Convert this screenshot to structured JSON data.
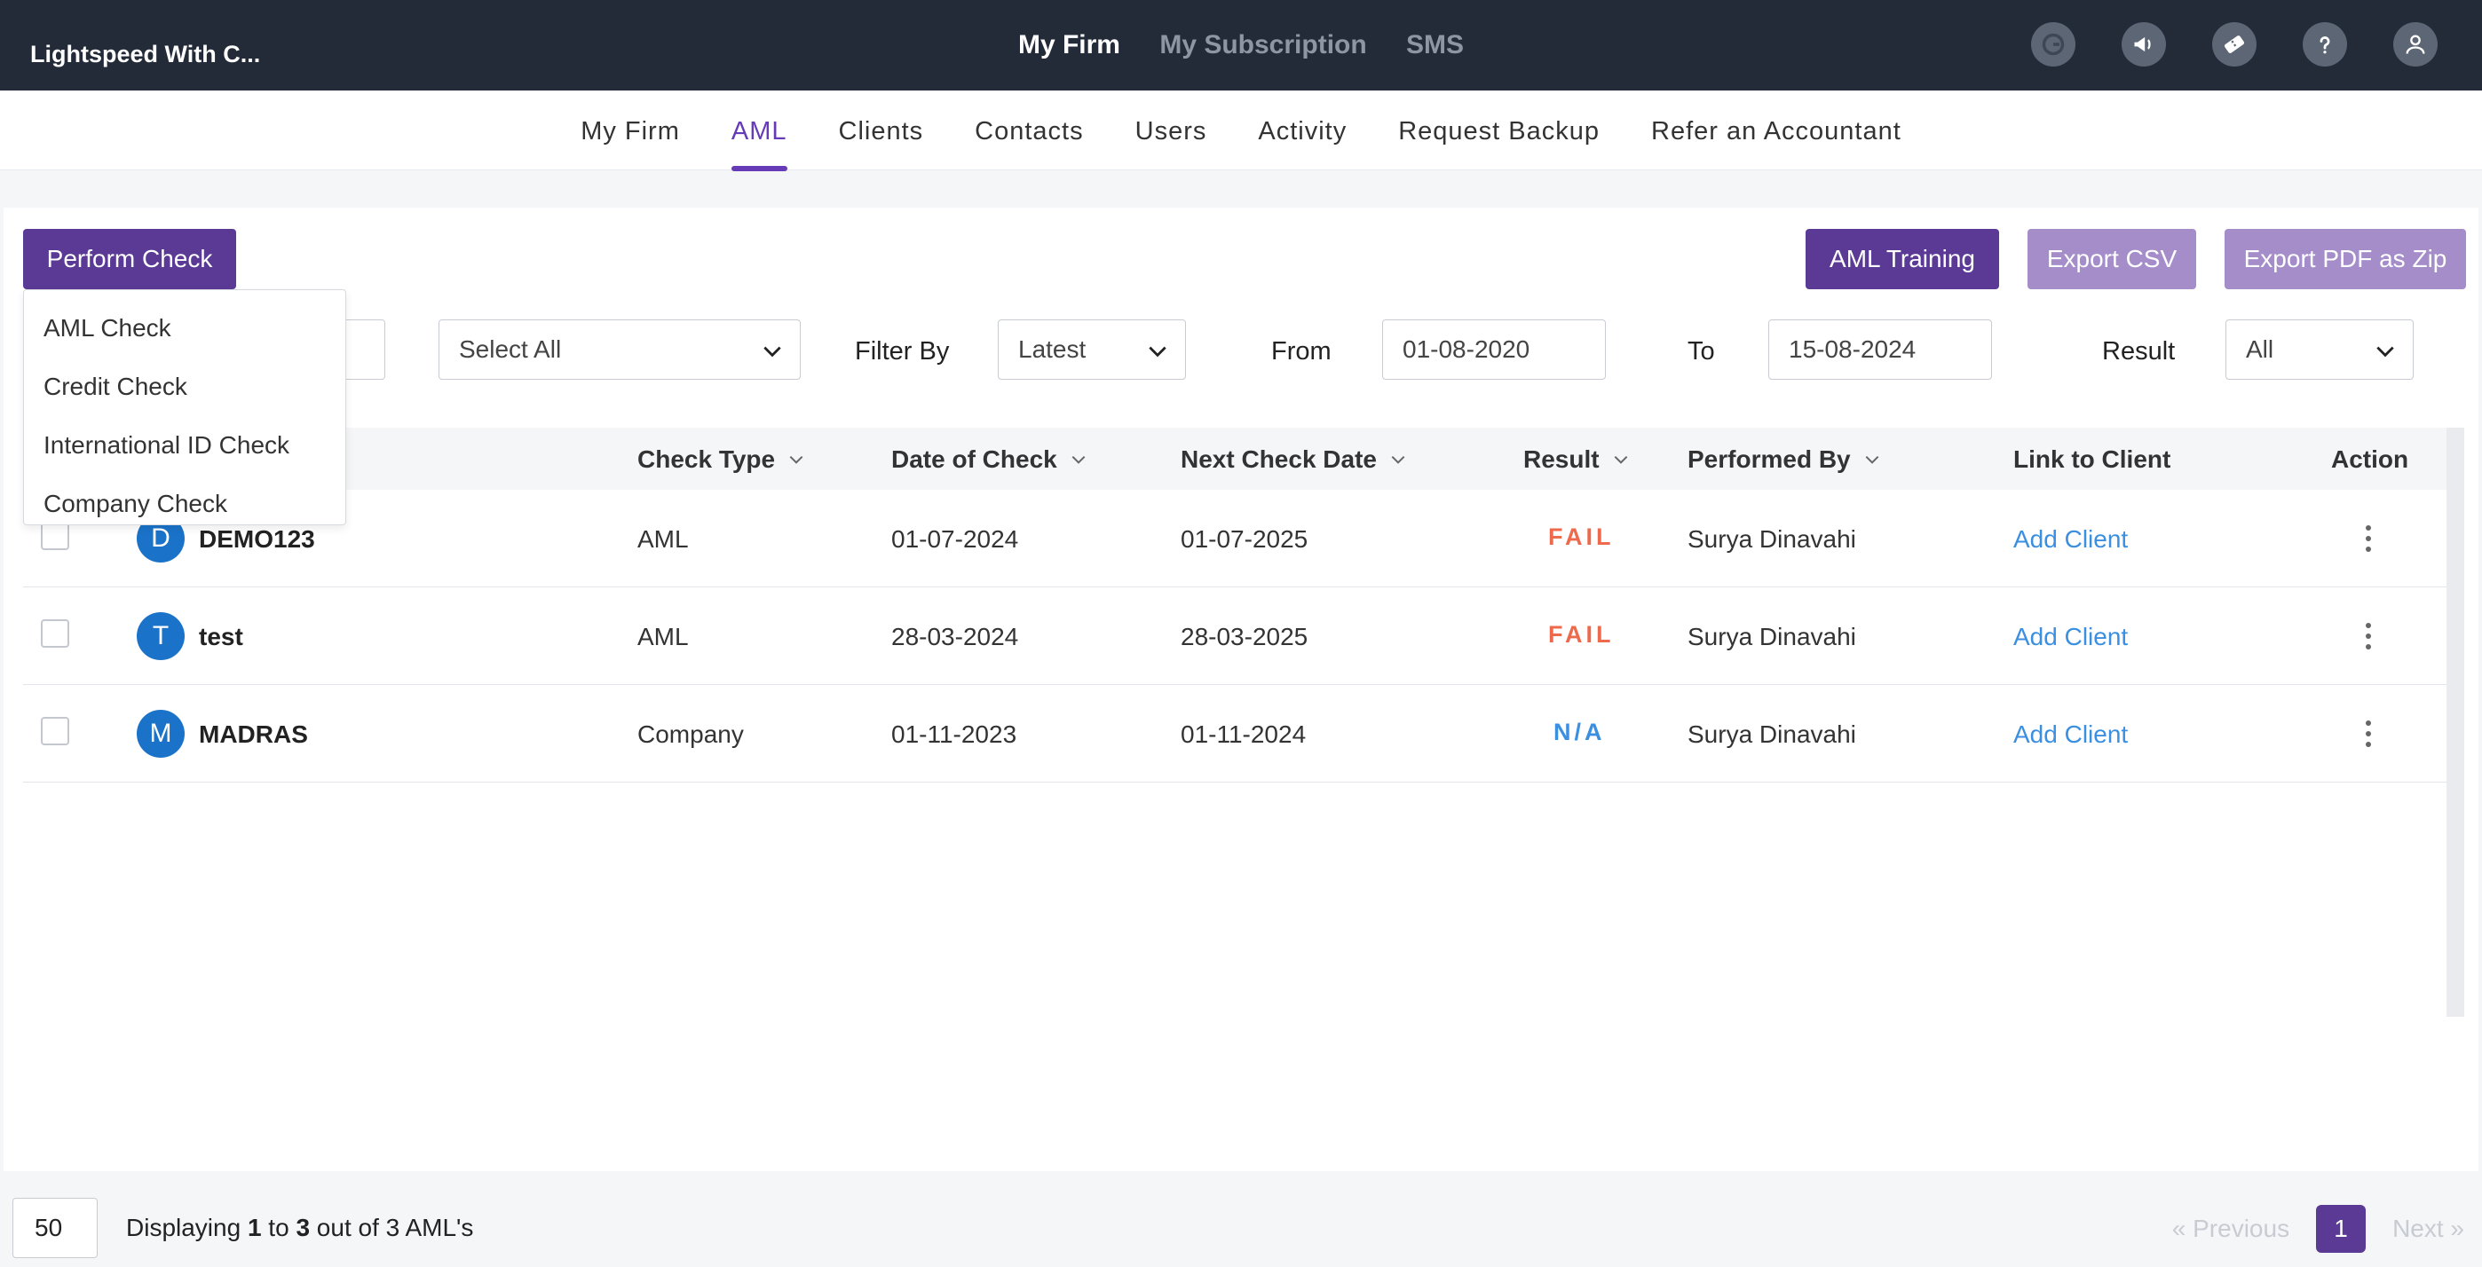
{
  "app": {
    "brand": "Lightspeed With C..."
  },
  "topnav": {
    "items": [
      "My Firm",
      "My Subscription",
      "SMS"
    ],
    "active": "My Firm"
  },
  "topicons": [
    "g-circle-icon",
    "megaphone-icon",
    "ticket-icon",
    "help-icon",
    "user-icon"
  ],
  "subnav": {
    "items": [
      "My Firm",
      "AML",
      "Clients",
      "Contacts",
      "Users",
      "Activity",
      "Request Backup",
      "Refer an Accountant"
    ],
    "active": "AML"
  },
  "toolbar": {
    "perform_check": "Perform Check",
    "aml_training": "AML Training",
    "export_csv": "Export CSV",
    "export_pdf": "Export PDF as Zip"
  },
  "perform_menu": [
    "AML Check",
    "Credit Check",
    "International ID Check",
    "Company Check"
  ],
  "filters": {
    "select_all": "Select All",
    "filter_by_label": "Filter By",
    "filter_by_value": "Latest",
    "from_label": "From",
    "from_value": "01-08-2020",
    "to_label": "To",
    "to_value": "15-08-2024",
    "result_label": "Result",
    "result_value": "All"
  },
  "table": {
    "headers": {
      "check_type": "Check Type",
      "date_of_check": "Date of Check",
      "next_check_date": "Next Check Date",
      "result": "Result",
      "performed_by": "Performed By",
      "link_to_client": "Link to Client",
      "action": "Action"
    },
    "rows": [
      {
        "initial": "D",
        "name": "DEMO123",
        "check_type": "AML",
        "date": "01-07-2024",
        "next": "01-07-2025",
        "result": "FAIL",
        "performed_by": "Surya Dinavahi",
        "link": "Add Client"
      },
      {
        "initial": "T",
        "name": "test",
        "check_type": "AML",
        "date": "28-03-2024",
        "next": "28-03-2025",
        "result": "FAIL",
        "performed_by": "Surya Dinavahi",
        "link": "Add Client"
      },
      {
        "initial": "M",
        "name": "MADRAS",
        "check_type": "Company",
        "date": "01-11-2023",
        "next": "01-11-2024",
        "result": "N/A",
        "performed_by": "Surya Dinavahi",
        "link": "Add Client"
      }
    ]
  },
  "footer": {
    "page_size": "50",
    "display_prefix": "Displaying ",
    "display_from": "1",
    "display_mid": " to ",
    "display_to": "3",
    "display_suffix": " out of 3 AML's",
    "prev": "Previous",
    "current_page": "1",
    "next": "Next"
  },
  "colors": {
    "accent": "#5b3a96",
    "fail": "#ee6a4c",
    "na": "#3b8fe0",
    "link": "#3b8fe0",
    "topbar": "#232b38"
  }
}
